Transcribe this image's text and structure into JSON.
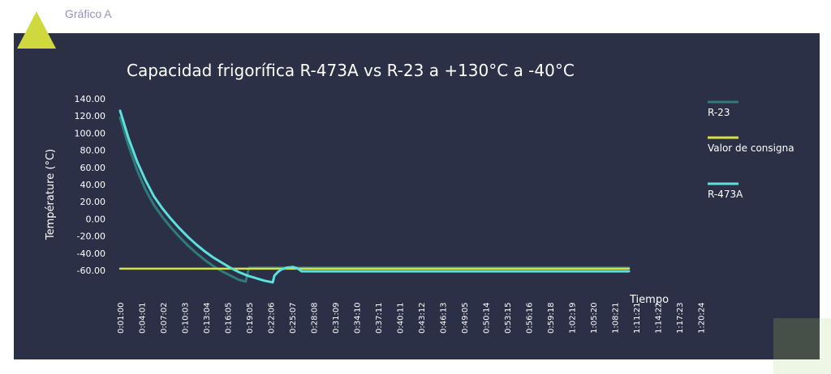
{
  "caption": "Gráfico A",
  "colors": {
    "panel_bg": "#2b3047",
    "accent_yellow": "#cfd83c",
    "r23": "#2f7a7a",
    "setpoint": "#d6e04a",
    "r473a": "#5ce0dc"
  },
  "chart_data": {
    "type": "line",
    "title": "Capacidad frigorífica R-473A vs R-23 a +130°C a -40°C",
    "xlabel": "Tiempo",
    "ylabel": "Température (°C)",
    "ylim": [
      -60,
      140
    ],
    "yticks": [
      "140.00",
      "120.00",
      "100.00",
      "80.00",
      "60.00",
      "40.00",
      "20.00",
      "0.00",
      "-20.00",
      "-40.00",
      "-60.00"
    ],
    "categories": [
      "0:01:00",
      "0:04:01",
      "0:07:02",
      "0:10:03",
      "0:13:04",
      "0:16:05",
      "0:19:05",
      "0:22:06",
      "0:25:07",
      "0:28:08",
      "0:31:09",
      "0:34:10",
      "0:37:11",
      "0:40:11",
      "0:43:12",
      "0:46:13",
      "0:49:05",
      "0:50:14",
      "0:53:15",
      "0:56:16",
      "0:59:18",
      "1:02:19",
      "1:05:20",
      "1:08:21",
      "1:11:21",
      "1:14:22",
      "1:17:23",
      "1:20:24"
    ],
    "legend": [
      "R-23",
      "Valor de consigna",
      "R-473A"
    ],
    "legend_position": "right",
    "grid": false,
    "series": [
      {
        "name": "R-23",
        "color": "#2f7a7a",
        "x": [
          0.0,
          0.5,
          1.0,
          1.5,
          2.0,
          2.5,
          3.0,
          3.5,
          4.0,
          4.5,
          5.0,
          5.5,
          6.0,
          6.5,
          7.0,
          7.4,
          7.6,
          8.0,
          9.0,
          10.0,
          12.0,
          15.0,
          20.0,
          25.0,
          30.0
        ],
        "values": [
          118,
          85,
          57,
          34,
          16,
          2,
          -10,
          -21,
          -31,
          -40,
          -48,
          -55,
          -61,
          -66,
          -71,
          -73,
          -57,
          -57,
          -57,
          -57,
          -57,
          -57,
          -57,
          -57,
          -57
        ]
      },
      {
        "name": "Valor de consigna",
        "color": "#d6e04a",
        "x": [
          0,
          30
        ],
        "values": [
          -58,
          -58
        ]
      },
      {
        "name": "R-473A",
        "color": "#5ce0dc",
        "x": [
          0.0,
          0.5,
          1.0,
          1.5,
          2.0,
          2.5,
          3.0,
          3.5,
          4.0,
          4.5,
          5.0,
          5.5,
          6.0,
          6.5,
          7.0,
          7.5,
          8.0,
          8.5,
          9.0,
          9.1,
          9.3,
          9.5,
          9.8,
          10.2,
          10.5,
          10.7,
          11.0,
          13.0,
          16.0,
          20.0,
          25.0,
          30.0
        ],
        "values": [
          126,
          94,
          67,
          45,
          26,
          12,
          0,
          -11,
          -21,
          -30,
          -38,
          -45,
          -51,
          -57,
          -62,
          -66,
          -69,
          -72,
          -74,
          -66,
          -62,
          -59,
          -57,
          -56,
          -58,
          -61,
          -61,
          -61,
          -61,
          -61,
          -61,
          -61
        ]
      }
    ]
  }
}
